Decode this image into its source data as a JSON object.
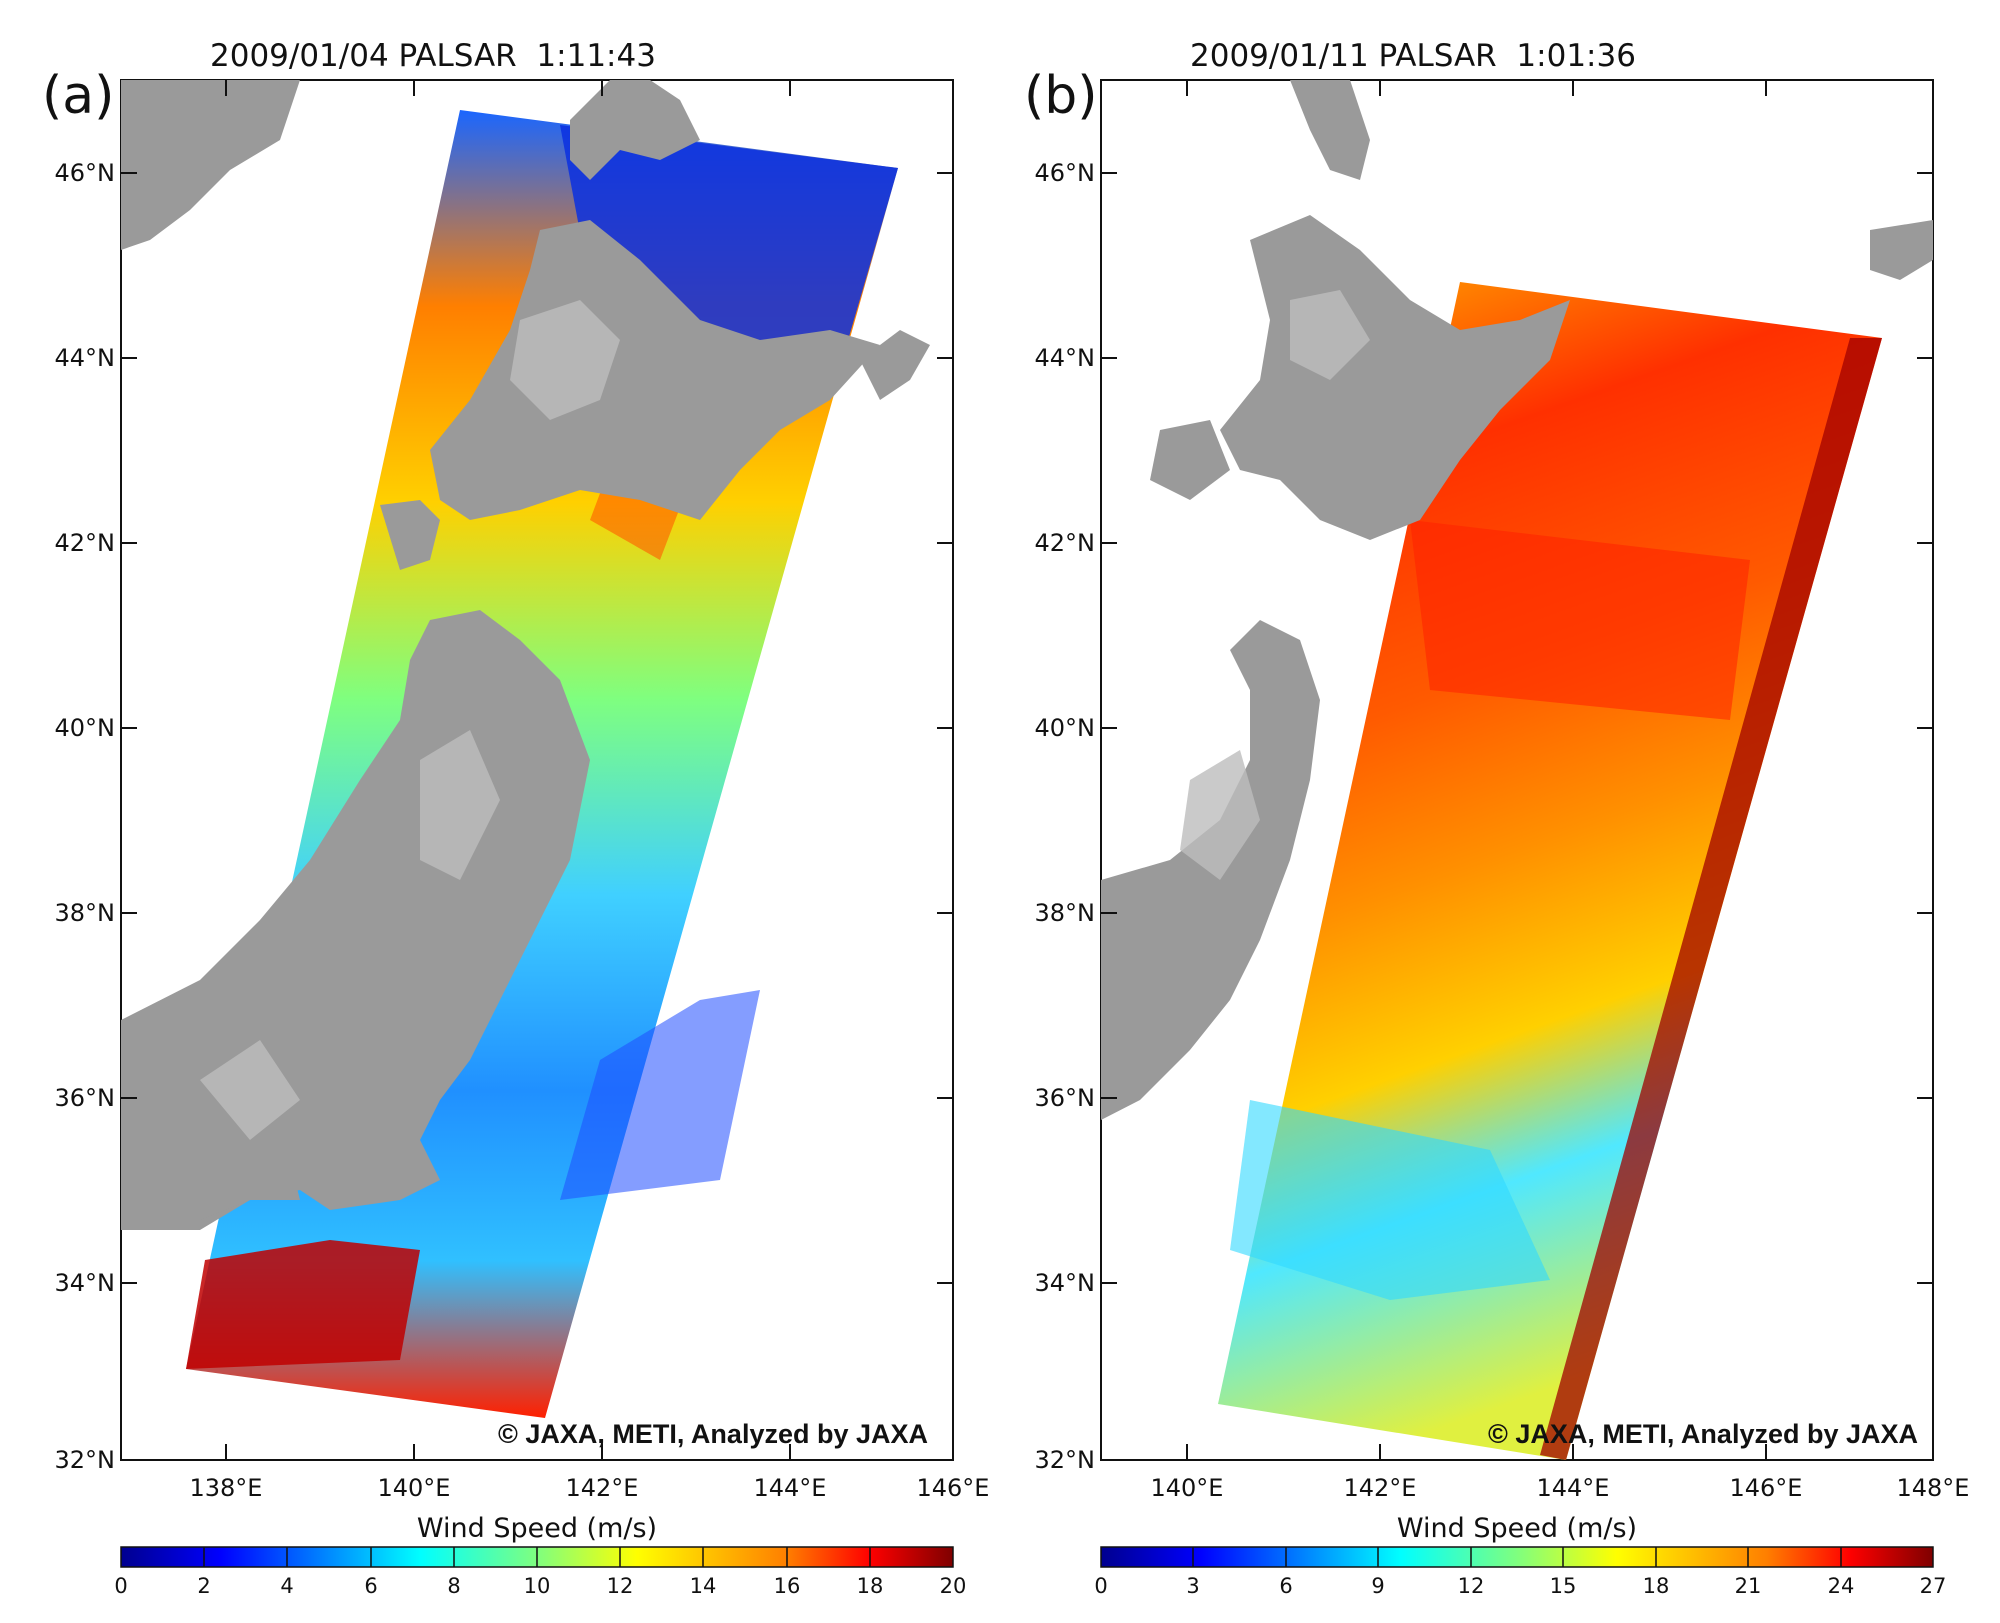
{
  "panels": [
    {
      "tag": "(a)",
      "title": "2009/01/04 PALSAR  1:11:43",
      "lat_labels": [
        "46°N",
        "44°N",
        "42°N",
        "40°N",
        "38°N",
        "36°N",
        "34°N",
        "32°N"
      ],
      "lon_labels": [
        "138°E",
        "140°E",
        "142°E",
        "144°E",
        "146°E"
      ],
      "copyright": "© JAXA, METI, Analyzed by JAXA",
      "colorbar_title": "Wind Speed (m/s)",
      "colorbar_ticks": [
        "0",
        "2",
        "4",
        "6",
        "8",
        "10",
        "12",
        "14",
        "16",
        "18",
        "20"
      ]
    },
    {
      "tag": "(b)",
      "title": "2009/01/11 PALSAR  1:01:36",
      "lat_labels": [
        "46°N",
        "44°N",
        "42°N",
        "40°N",
        "38°N",
        "36°N",
        "34°N",
        "32°N"
      ],
      "lon_labels": [
        "140°E",
        "142°E",
        "144°E",
        "146°E",
        "148°E"
      ],
      "copyright": "© JAXA, METI, Analyzed by JAXA",
      "colorbar_title": "Wind Speed (m/s)",
      "colorbar_ticks": [
        "0",
        "3",
        "6",
        "9",
        "12",
        "15",
        "18",
        "21",
        "24",
        "27"
      ]
    }
  ],
  "colors": {
    "land": "#9a9a9a",
    "jet": [
      "#00008f",
      "#0000ff",
      "#007fff",
      "#00ffff",
      "#7fff7f",
      "#ffff00",
      "#ff7f00",
      "#ff0000",
      "#7f0000"
    ]
  }
}
